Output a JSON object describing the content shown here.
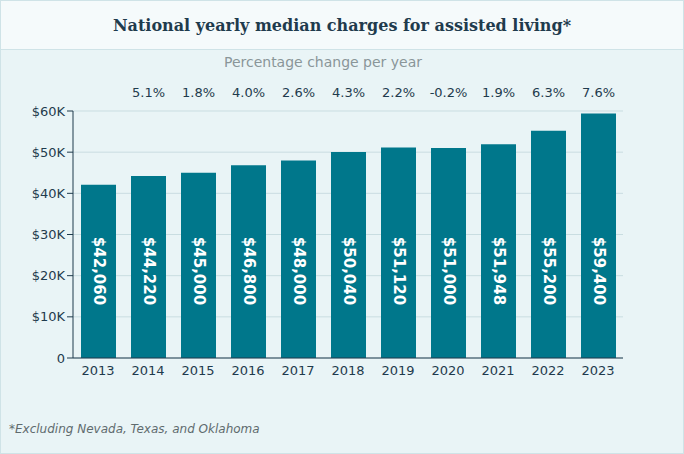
{
  "chart_data": {
    "type": "bar",
    "title": "National yearly median charges for assisted living*",
    "subtitle": "Percentage change per year",
    "categories": [
      "2013",
      "2014",
      "2015",
      "2016",
      "2017",
      "2018",
      "2019",
      "2020",
      "2021",
      "2022",
      "2023"
    ],
    "values": [
      42060,
      44220,
      45000,
      46800,
      48000,
      50040,
      51120,
      51000,
      51948,
      55200,
      59400
    ],
    "value_labels": [
      "$42,060",
      "$44,220",
      "$45,000",
      "$46,800",
      "$48,000",
      "$50,040",
      "$51,120",
      "$51,000",
      "$51,948",
      "$55,200",
      "$59,400"
    ],
    "change_labels": [
      null,
      "5.1%",
      "1.8%",
      "4.0%",
      "2.6%",
      "4.3%",
      "2.2%",
      "-0.2%",
      "1.9%",
      "6.3%",
      "7.6%"
    ],
    "color": "#00778b",
    "ylim": [
      0,
      60000
    ],
    "yticks": [
      0,
      {
        "value": 10000,
        "label": "$10K"
      },
      {
        "value": 20000,
        "label": "$20K"
      },
      {
        "value": 30000,
        "label": "$30K"
      },
      {
        "value": 40000,
        "label": "$40K"
      },
      {
        "value": 50000,
        "label": "$50K"
      },
      {
        "value": 60000,
        "label": "$60K"
      }
    ],
    "grid": true,
    "data_labels": true,
    "footnote": "*Excluding Nevada, Texas, and Oklahoma"
  }
}
